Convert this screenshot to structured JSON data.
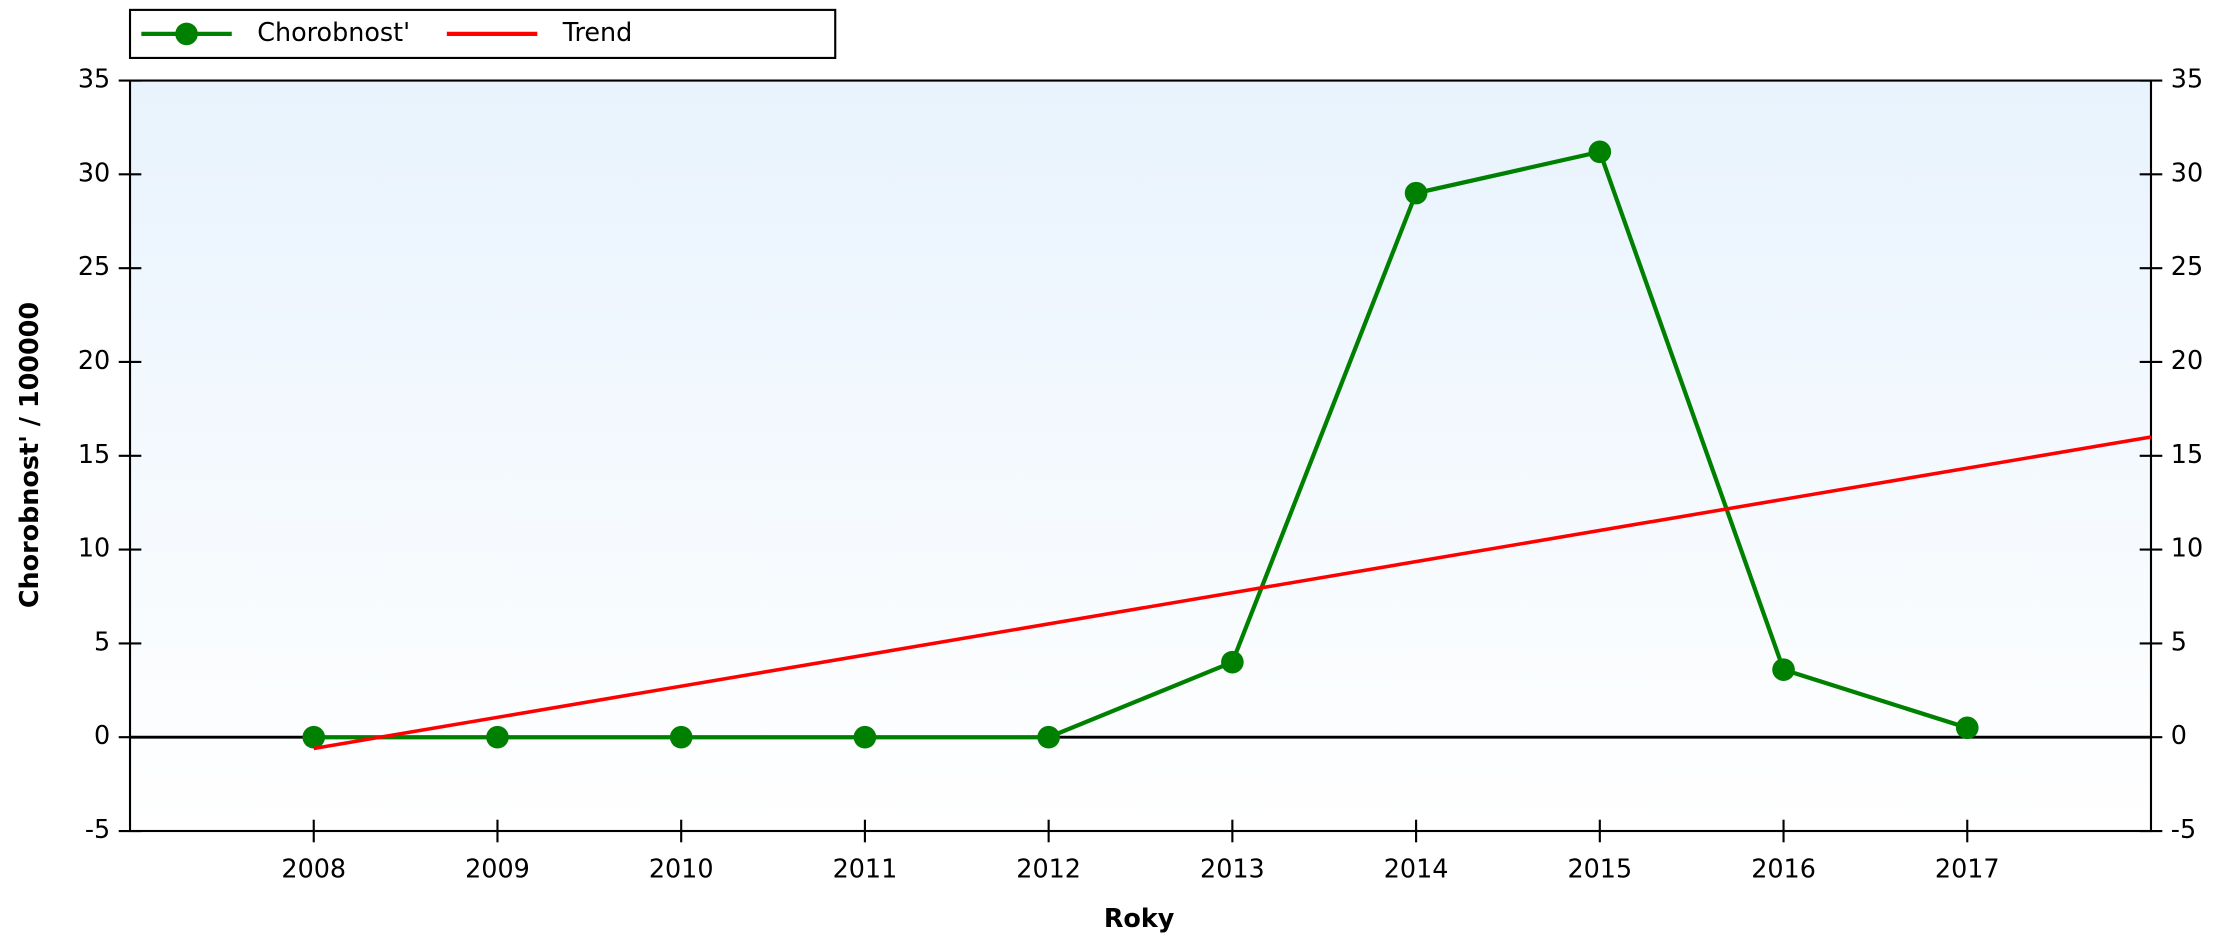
{
  "chart_data": {
    "type": "line",
    "x_label": "Roky",
    "y_label": "Chorobnost' / 100000",
    "x": [
      2008,
      2009,
      2010,
      2011,
      2012,
      2013,
      2014,
      2015,
      2016,
      2017
    ],
    "series": [
      {
        "name": "Chorobnost'",
        "color": "#008000",
        "values": [
          0,
          0,
          0,
          0,
          0,
          4,
          29,
          31.2,
          3.6,
          0.5
        ]
      },
      {
        "name": "Trend",
        "color": "#ff0000",
        "x": [
          2008,
          2018
        ],
        "values": [
          -0.6,
          16
        ]
      }
    ],
    "xlim": [
      2007,
      2018
    ],
    "xticks": [
      2008,
      2009,
      2010,
      2011,
      2012,
      2013,
      2014,
      2015,
      2016,
      2017
    ],
    "ylim": [
      -5,
      35
    ],
    "yticks": [
      -5,
      0,
      5,
      10,
      15,
      20,
      25,
      30,
      35
    ],
    "y2lim": [
      -5,
      35
    ],
    "y2ticks": [
      -5,
      0,
      5,
      10,
      15,
      20,
      25,
      30,
      35
    ],
    "legend": "top-left"
  }
}
